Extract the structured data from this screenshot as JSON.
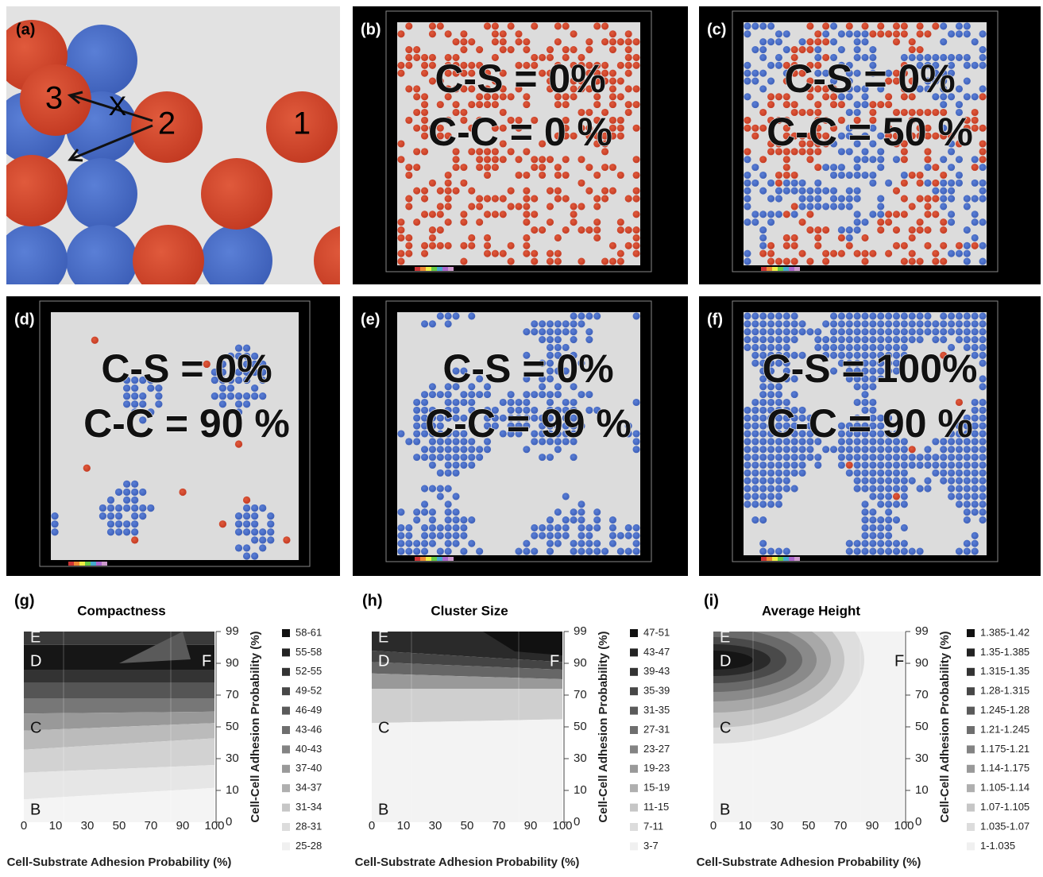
{
  "panel_a": {
    "label": "(a)",
    "cell_labels": [
      "1",
      "2",
      "3"
    ],
    "blocked": "X"
  },
  "sim_panels": [
    {
      "label": "(b)",
      "lines": [
        "C-S = 0%",
        "C-C = 0 %"
      ]
    },
    {
      "label": "(c)",
      "lines": [
        "C-S = 0%",
        "C-C = 50 %"
      ]
    },
    {
      "label": "(d)",
      "lines": [
        "C-S = 0%",
        "C-C = 90 %"
      ]
    },
    {
      "label": "(e)",
      "lines": [
        "C-S = 0%",
        "C-C = 99 %"
      ]
    },
    {
      "label": "(f)",
      "lines": [
        "C-S = 100%",
        "C-C = 90 %"
      ]
    }
  ],
  "contours": [
    {
      "label": "(g)",
      "title": "Compactness",
      "legend": [
        "58-61",
        "55-58",
        "52-55",
        "49-52",
        "46-49",
        "43-46",
        "40-43",
        "37-40",
        "34-37",
        "31-34",
        "28-31",
        "25-28"
      ],
      "points": [
        "E",
        "D",
        "C",
        "B",
        "F"
      ]
    },
    {
      "label": "(h)",
      "title": "Cluster Size",
      "legend": [
        "47-51",
        "43-47",
        "39-43",
        "35-39",
        "31-35",
        "27-31",
        "23-27",
        "19-23",
        "15-19",
        "11-15",
        "7-11",
        "3-7"
      ],
      "points": [
        "E",
        "D",
        "C",
        "B",
        "F"
      ]
    },
    {
      "label": "(i)",
      "title": "Average Height",
      "legend": [
        "1.385-1.42",
        "1.35-1.385",
        "1.315-1.35",
        "1.28-1.315",
        "1.245-1.28",
        "1.21-1.245",
        "1.175-1.21",
        "1.14-1.175",
        "1.105-1.14",
        "1.07-1.105",
        "1.035-1.07",
        "1-1.035"
      ],
      "points": [
        "E",
        "D",
        "C",
        "B",
        "F"
      ]
    }
  ],
  "x_axis_label": "Cell-Substrate Adhesion Probability (%)",
  "y_axis_label": "Cell-Cell Adhesion Probability (%)",
  "xticks": [
    "0",
    "10",
    "30",
    "50",
    "70",
    "90",
    "100"
  ],
  "yticks": [
    "99",
    "90",
    "70",
    "50",
    "30",
    "10",
    "0"
  ]
}
